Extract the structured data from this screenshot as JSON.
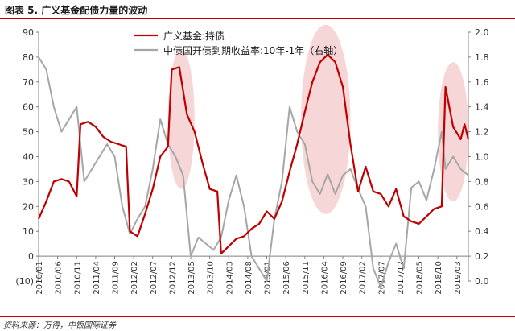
{
  "figure_title": "图表 5. 广义基金配债力量的波动",
  "source": "资料来源：万得，中银国际证券",
  "colors": {
    "series1": "#c00000",
    "series2": "#a6a6a6",
    "highlight": "#f2c4c4",
    "accent": "#c00000"
  },
  "chart_data": {
    "type": "line",
    "left_axis": {
      "ticks": [
        "(10)",
        "0",
        "10",
        "20",
        "30",
        "40",
        "50",
        "60",
        "70",
        "80",
        "90"
      ],
      "ylim": [
        -10,
        90
      ]
    },
    "right_axis": {
      "ticks": [
        "0.0",
        "0.2",
        "0.4",
        "0.6",
        "0.8",
        "1.0",
        "1.2",
        "1.4",
        "1.6",
        "1.8",
        "2.0"
      ],
      "ylim": [
        0,
        2.0
      ]
    },
    "x_ticks": [
      "2010/01",
      "2010/06",
      "2010/11",
      "2011/04",
      "2011/09",
      "2012/02",
      "2012/07",
      "2012/12",
      "2013/05",
      "2013/10",
      "2014/03",
      "2014/08",
      "2015/01",
      "2015/06",
      "2015/11",
      "2016/04",
      "2016/09",
      "2017/02",
      "2017/07",
      "2017/12",
      "2018/05",
      "2018/10",
      "2019/03"
    ],
    "x_start": "2010-01",
    "x_end": "2019-06",
    "grid": false,
    "legend_position": "top-center",
    "series": [
      {
        "name": "广义基金:持债",
        "axis": "left",
        "points": [
          [
            "2010-01",
            15
          ],
          [
            "2010-03",
            22
          ],
          [
            "2010-05",
            30
          ],
          [
            "2010-07",
            31
          ],
          [
            "2010-09",
            30
          ],
          [
            "2010-11",
            24
          ],
          [
            "2010-12",
            53
          ],
          [
            "2011-02",
            54
          ],
          [
            "2011-04",
            52
          ],
          [
            "2011-06",
            48
          ],
          [
            "2011-08",
            46
          ],
          [
            "2011-10",
            45
          ],
          [
            "2011-12",
            44
          ],
          [
            "2012-01",
            10
          ],
          [
            "2012-03",
            8
          ],
          [
            "2012-05",
            17
          ],
          [
            "2012-07",
            27
          ],
          [
            "2012-09",
            40
          ],
          [
            "2012-11",
            44
          ],
          [
            "2012-12",
            75
          ],
          [
            "2013-02",
            76
          ],
          [
            "2013-04",
            57
          ],
          [
            "2013-06",
            50
          ],
          [
            "2013-08",
            38
          ],
          [
            "2013-10",
            27
          ],
          [
            "2013-12",
            26
          ],
          [
            "2014-01",
            1
          ],
          [
            "2014-03",
            4
          ],
          [
            "2014-05",
            7
          ],
          [
            "2014-07",
            8
          ],
          [
            "2014-09",
            11
          ],
          [
            "2014-11",
            13
          ],
          [
            "2015-01",
            18
          ],
          [
            "2015-03",
            15
          ],
          [
            "2015-05",
            22
          ],
          [
            "2015-07",
            34
          ],
          [
            "2015-09",
            45
          ],
          [
            "2015-11",
            58
          ],
          [
            "2016-01",
            70
          ],
          [
            "2016-03",
            78
          ],
          [
            "2016-05",
            81
          ],
          [
            "2016-07",
            78
          ],
          [
            "2016-09",
            68
          ],
          [
            "2016-11",
            45
          ],
          [
            "2017-01",
            26
          ],
          [
            "2017-03",
            36
          ],
          [
            "2017-05",
            26
          ],
          [
            "2017-07",
            25
          ],
          [
            "2017-09",
            20
          ],
          [
            "2017-11",
            27
          ],
          [
            "2018-01",
            16
          ],
          [
            "2018-03",
            14
          ],
          [
            "2018-05",
            13
          ],
          [
            "2018-07",
            16
          ],
          [
            "2018-09",
            19
          ],
          [
            "2018-11",
            20
          ],
          [
            "2018-12",
            68
          ],
          [
            "2019-02",
            52
          ],
          [
            "2019-04",
            47
          ],
          [
            "2019-05",
            53
          ],
          [
            "2019-06",
            47
          ]
        ]
      },
      {
        "name": "中债国开债到期收益率:10年-1年（右轴）",
        "axis": "right",
        "points": [
          [
            "2010-01",
            1.8
          ],
          [
            "2010-03",
            1.7
          ],
          [
            "2010-05",
            1.4
          ],
          [
            "2010-07",
            1.2
          ],
          [
            "2010-09",
            1.3
          ],
          [
            "2010-11",
            1.4
          ],
          [
            "2011-01",
            0.8
          ],
          [
            "2011-03",
            0.9
          ],
          [
            "2011-05",
            1.0
          ],
          [
            "2011-07",
            1.1
          ],
          [
            "2011-09",
            1.0
          ],
          [
            "2011-11",
            0.6
          ],
          [
            "2012-01",
            0.38
          ],
          [
            "2012-03",
            0.5
          ],
          [
            "2012-05",
            0.6
          ],
          [
            "2012-07",
            0.9
          ],
          [
            "2012-09",
            1.3
          ],
          [
            "2012-11",
            1.1
          ],
          [
            "2013-01",
            1.0
          ],
          [
            "2013-03",
            0.85
          ],
          [
            "2013-05",
            0.2
          ],
          [
            "2013-07",
            0.35
          ],
          [
            "2013-09",
            0.3
          ],
          [
            "2013-11",
            0.25
          ],
          [
            "2014-01",
            0.35
          ],
          [
            "2014-03",
            0.65
          ],
          [
            "2014-05",
            0.85
          ],
          [
            "2014-07",
            0.6
          ],
          [
            "2014-09",
            0.2
          ],
          [
            "2014-11",
            0.1
          ],
          [
            "2015-01",
            0.0
          ],
          [
            "2015-03",
            0.5
          ],
          [
            "2015-05",
            0.8
          ],
          [
            "2015-07",
            1.4
          ],
          [
            "2015-09",
            1.2
          ],
          [
            "2015-11",
            1.1
          ],
          [
            "2016-01",
            0.8
          ],
          [
            "2016-03",
            0.7
          ],
          [
            "2016-05",
            0.86
          ],
          [
            "2016-07",
            0.7
          ],
          [
            "2016-09",
            0.85
          ],
          [
            "2016-11",
            0.9
          ],
          [
            "2017-01",
            0.74
          ],
          [
            "2017-03",
            0.6
          ],
          [
            "2017-05",
            0.1
          ],
          [
            "2017-07",
            -0.05
          ],
          [
            "2017-09",
            0.15
          ],
          [
            "2017-11",
            0.3
          ],
          [
            "2018-01",
            0.1
          ],
          [
            "2018-03",
            0.75
          ],
          [
            "2018-05",
            0.8
          ],
          [
            "2018-07",
            0.65
          ],
          [
            "2018-09",
            0.9
          ],
          [
            "2018-11",
            1.2
          ],
          [
            "2018-12",
            0.9
          ],
          [
            "2019-02",
            1.0
          ],
          [
            "2019-04",
            0.9
          ],
          [
            "2019-06",
            0.85
          ]
        ]
      }
    ],
    "highlights": [
      {
        "from": "2012-11",
        "to": "2013-06",
        "axis": "left",
        "center_value": 55,
        "half_height": 28
      },
      {
        "from": "2015-10",
        "to": "2016-11",
        "axis": "left",
        "center_value": 55,
        "half_height": 38
      },
      {
        "from": "2018-10",
        "to": "2019-06",
        "axis": "left",
        "center_value": 50,
        "half_height": 28
      }
    ]
  }
}
